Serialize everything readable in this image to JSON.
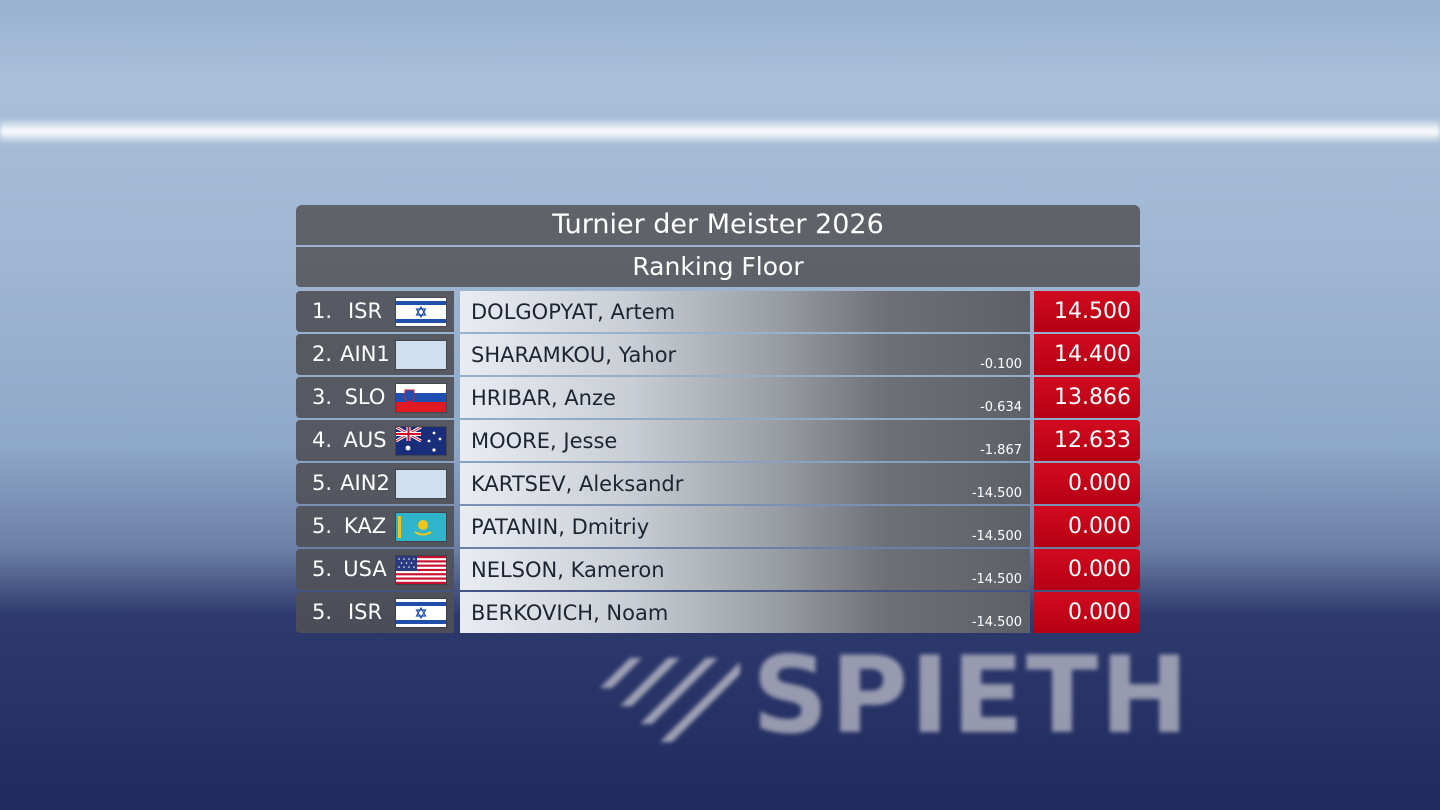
{
  "board": {
    "title": "Turnier der Meister 2026",
    "subtitle": "Ranking Floor"
  },
  "rows": [
    {
      "rank": "1.",
      "country": "ISR",
      "flag": "israel-flag",
      "name": "DOLGOPYAT, Artem",
      "diff": "",
      "score": "14.500"
    },
    {
      "rank": "2.",
      "country": "AIN1",
      "flag": "neutral-flag",
      "name": "SHARAMKOU, Yahor",
      "diff": "-0.100",
      "score": "14.400"
    },
    {
      "rank": "3.",
      "country": "SLO",
      "flag": "slovenia-flag",
      "name": "HRIBAR, Anze",
      "diff": "-0.634",
      "score": "13.866"
    },
    {
      "rank": "4.",
      "country": "AUS",
      "flag": "australia-flag",
      "name": "MOORE, Jesse",
      "diff": "-1.867",
      "score": "12.633"
    },
    {
      "rank": "5.",
      "country": "AIN2",
      "flag": "neutral-flag",
      "name": "KARTSEV, Aleksandr",
      "diff": "-14.500",
      "score": "0.000"
    },
    {
      "rank": "5.",
      "country": "KAZ",
      "flag": "kazakhstan-flag",
      "name": "PATANIN, Dmitriy",
      "diff": "-14.500",
      "score": "0.000"
    },
    {
      "rank": "5.",
      "country": "USA",
      "flag": "usa-flag",
      "name": "NELSON, Kameron",
      "diff": "-14.500",
      "score": "0.000"
    },
    {
      "rank": "5.",
      "country": "ISR",
      "flag": "israel-flag",
      "name": "BERKOVICH, Noam",
      "diff": "-14.500",
      "score": "0.000"
    }
  ],
  "background": {
    "sponsor_text": "SPIETH"
  },
  "colors": {
    "score_red": "#c8061a",
    "bar_gray": "#5a5a5f"
  }
}
